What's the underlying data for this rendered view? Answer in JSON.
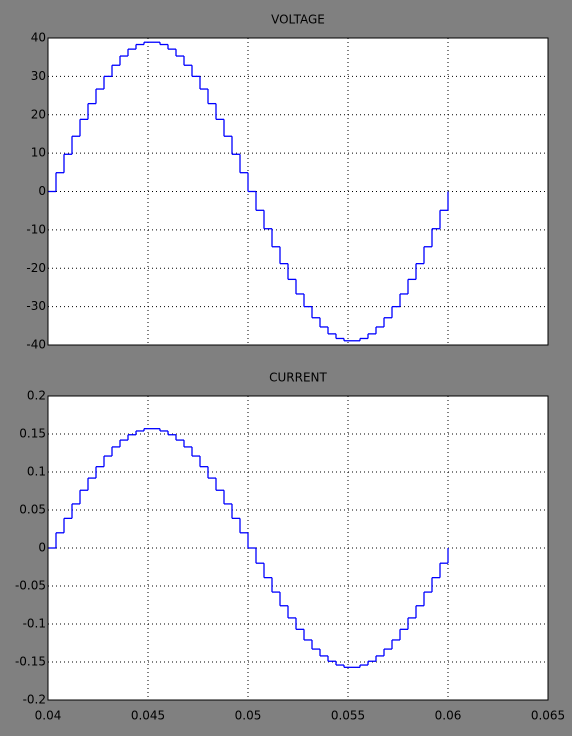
{
  "chart_data": [
    {
      "type": "step",
      "title": "VOLTAGE",
      "color": "#0000ff",
      "grid": true,
      "x": [
        0.04,
        0.0404,
        0.0408,
        0.0412,
        0.0416,
        0.042,
        0.0424,
        0.0428,
        0.0432,
        0.0436,
        0.044,
        0.0444,
        0.0448,
        0.0452,
        0.0456,
        0.046,
        0.0464,
        0.0468,
        0.0472,
        0.0476,
        0.048,
        0.0484,
        0.0488,
        0.0492,
        0.0496,
        0.05,
        0.0504,
        0.0508,
        0.0512,
        0.0516,
        0.052,
        0.0524,
        0.0528,
        0.0532,
        0.0536,
        0.054,
        0.0544,
        0.0548,
        0.0552,
        0.0556,
        0.056,
        0.0564,
        0.0568,
        0.0572,
        0.0576,
        0.058,
        0.0584,
        0.0588,
        0.0592,
        0.0596,
        0.06
      ],
      "values": [
        0,
        4.9,
        9.7,
        14.4,
        18.8,
        22.9,
        26.7,
        30.0,
        32.9,
        35.3,
        37.1,
        38.3,
        38.9,
        38.9,
        38.3,
        37.1,
        35.3,
        32.9,
        30.0,
        26.7,
        22.9,
        18.8,
        14.4,
        9.7,
        4.9,
        0,
        -4.9,
        -9.7,
        -14.4,
        -18.8,
        -22.9,
        -26.7,
        -30.0,
        -32.9,
        -35.3,
        -37.1,
        -38.3,
        -38.9,
        -38.9,
        -38.3,
        -37.1,
        -35.3,
        -32.9,
        -30.0,
        -26.7,
        -22.9,
        -18.8,
        -14.4,
        -9.7,
        -4.9,
        0
      ],
      "xlim": [
        0.04,
        0.065
      ],
      "xticks": [
        0.04,
        0.045,
        0.05,
        0.055,
        0.06,
        0.065
      ],
      "ylim": [
        -40,
        40
      ],
      "yticks": [
        40,
        30,
        20,
        10,
        0,
        -10,
        -20,
        -30,
        -40
      ]
    },
    {
      "type": "step",
      "title": "CURRENT",
      "color": "#0000ff",
      "grid": true,
      "x": [
        0.04,
        0.0404,
        0.0408,
        0.0412,
        0.0416,
        0.042,
        0.0424,
        0.0428,
        0.0432,
        0.0436,
        0.044,
        0.0444,
        0.0448,
        0.0452,
        0.0456,
        0.046,
        0.0464,
        0.0468,
        0.0472,
        0.0476,
        0.048,
        0.0484,
        0.0488,
        0.0492,
        0.0496,
        0.05,
        0.0504,
        0.0508,
        0.0512,
        0.0516,
        0.052,
        0.0524,
        0.0528,
        0.0532,
        0.0536,
        0.054,
        0.0544,
        0.0548,
        0.0552,
        0.0556,
        0.056,
        0.0564,
        0.0568,
        0.0572,
        0.0576,
        0.058,
        0.0584,
        0.0588,
        0.0592,
        0.0596,
        0.06
      ],
      "values": [
        0,
        0.02,
        0.039,
        0.058,
        0.076,
        0.092,
        0.107,
        0.121,
        0.133,
        0.142,
        0.149,
        0.154,
        0.157,
        0.157,
        0.154,
        0.149,
        0.142,
        0.133,
        0.121,
        0.107,
        0.092,
        0.076,
        0.058,
        0.039,
        0.02,
        0,
        -0.02,
        -0.039,
        -0.058,
        -0.076,
        -0.092,
        -0.107,
        -0.121,
        -0.133,
        -0.142,
        -0.149,
        -0.154,
        -0.157,
        -0.157,
        -0.154,
        -0.149,
        -0.142,
        -0.133,
        -0.121,
        -0.107,
        -0.092,
        -0.076,
        -0.058,
        -0.039,
        -0.02,
        0
      ],
      "xlim": [
        0.04,
        0.065
      ],
      "xticks": [
        0.04,
        0.045,
        0.05,
        0.055,
        0.06,
        0.065
      ],
      "ylim": [
        -0.2,
        0.2
      ],
      "yticks": [
        0.2,
        0.15,
        0.1,
        0.05,
        0,
        -0.05,
        -0.1,
        -0.15,
        -0.2
      ]
    }
  ]
}
